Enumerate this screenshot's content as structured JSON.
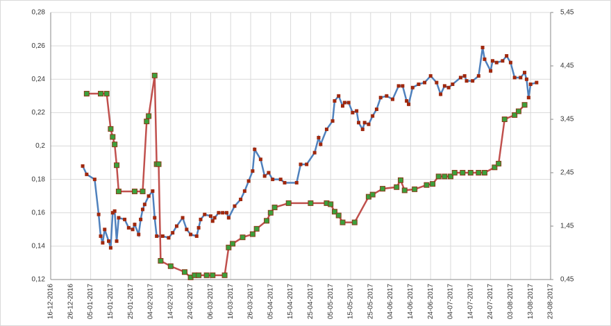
{
  "chart_data": {
    "type": "line",
    "xlim": [
      "16-12-2016",
      "23-08-2017"
    ],
    "xticks": [
      "16-12-2016",
      "26-12-2016",
      "05-01-2017",
      "15-01-2017",
      "25-01-2017",
      "04-02-2017",
      "14-02-2017",
      "24-02-2017",
      "06-03-2017",
      "16-03-2017",
      "26-03-2017",
      "05-04-2017",
      "15-04-2017",
      "25-04-2017",
      "05-05-2017",
      "15-05-2017",
      "25-05-2017",
      "04-06-2017",
      "14-06-2017",
      "24-06-2017",
      "04-07-2017",
      "14-07-2017",
      "24-07-2017",
      "03-08-2017",
      "13-08-2017",
      "23-08-2017"
    ],
    "ylim": [
      0.12,
      0.28
    ],
    "yticks": [
      {
        "value": 0.12,
        "label": "0,12"
      },
      {
        "value": 0.14,
        "label": "0,14"
      },
      {
        "value": 0.16,
        "label": "0,16"
      },
      {
        "value": 0.18,
        "label": "0,18"
      },
      {
        "value": 0.2,
        "label": "0,2"
      },
      {
        "value": 0.22,
        "label": "0,22"
      },
      {
        "value": 0.24,
        "label": "0,24"
      },
      {
        "value": 0.26,
        "label": "0,26"
      },
      {
        "value": 0.28,
        "label": "0,28"
      }
    ],
    "y2lim": [
      0.45,
      5.45
    ],
    "y2ticks": [
      {
        "value": 0.45,
        "label": "0,45"
      },
      {
        "value": 1.45,
        "label": "1,45"
      },
      {
        "value": 2.45,
        "label": "2,45"
      },
      {
        "value": 3.45,
        "label": "3,45"
      },
      {
        "value": 4.45,
        "label": "4,45"
      },
      {
        "value": 5.45,
        "label": "5,45"
      }
    ],
    "grid": true,
    "series": [
      {
        "color": "#4f81bd",
        "marker_color": "#a0280e",
        "x": [
          "01-01-2017",
          "03-01-2017",
          "07-01-2017",
          "09-01-2017",
          "10-01-2017",
          "11-01-2017",
          "12-01-2017",
          "14-01-2017",
          "15-01-2017",
          "16-01-2017",
          "17-01-2017",
          "18-01-2017",
          "19-01-2017",
          "22-01-2017",
          "24-01-2017",
          "26-01-2017",
          "27-01-2017",
          "29-01-2017",
          "30-01-2017",
          "31-01-2017",
          "01-02-2017",
          "03-02-2017",
          "05-02-2017",
          "06-02-2017",
          "07-02-2017",
          "10-02-2017",
          "13-02-2017",
          "15-02-2017",
          "17-02-2017",
          "20-02-2017",
          "22-02-2017",
          "24-02-2017",
          "27-02-2017",
          "28-02-2017",
          "01-03-2017",
          "03-03-2017",
          "06-03-2017",
          "07-03-2017",
          "08-03-2017",
          "10-03-2017",
          "12-03-2017",
          "14-03-2017",
          "15-03-2017",
          "18-03-2017",
          "21-03-2017",
          "23-03-2017",
          "25-03-2017",
          "27-03-2017",
          "28-03-2017",
          "31-03-2017",
          "02-04-2017",
          "04-04-2017",
          "06-04-2017",
          "10-04-2017",
          "12-04-2017",
          "18-04-2017",
          "20-04-2017",
          "23-04-2017",
          "27-04-2017",
          "29-04-2017",
          "30-04-2017",
          "03-05-2017",
          "06-05-2017",
          "07-05-2017",
          "09-05-2017",
          "11-05-2017",
          "12-05-2017",
          "14-05-2017",
          "16-05-2017",
          "18-05-2017",
          "19-05-2017",
          "21-05-2017",
          "22-05-2017",
          "24-05-2017",
          "26-05-2017",
          "28-05-2017",
          "30-05-2017",
          "02-06-2017",
          "05-06-2017",
          "08-06-2017",
          "10-06-2017",
          "12-06-2017",
          "13-06-2017",
          "15-06-2017",
          "18-06-2017",
          "21-06-2017",
          "24-06-2017",
          "27-06-2017",
          "29-06-2017",
          "01-07-2017",
          "03-07-2017",
          "05-07-2017",
          "09-07-2017",
          "11-07-2017",
          "12-07-2017",
          "15-07-2017",
          "18-07-2017",
          "20-07-2017",
          "21-07-2017",
          "24-07-2017",
          "25-07-2017",
          "27-07-2017",
          "30-07-2017",
          "01-08-2017",
          "03-08-2017",
          "05-08-2017",
          "08-08-2017",
          "10-08-2017",
          "11-08-2017",
          "12-08-2017",
          "13-08-2017",
          "16-08-2017"
        ],
        "values": [
          0.188,
          0.183,
          0.18,
          0.159,
          0.146,
          0.142,
          0.15,
          0.143,
          0.139,
          0.16,
          0.161,
          0.143,
          0.157,
          0.156,
          0.151,
          0.15,
          0.153,
          0.147,
          0.156,
          0.162,
          0.165,
          0.17,
          0.173,
          0.157,
          0.146,
          0.146,
          0.145,
          0.148,
          0.152,
          0.157,
          0.15,
          0.147,
          0.146,
          0.151,
          0.156,
          0.159,
          0.158,
          0.155,
          0.157,
          0.16,
          0.16,
          0.16,
          0.157,
          0.164,
          0.168,
          0.173,
          0.179,
          0.185,
          0.198,
          0.192,
          0.182,
          0.184,
          0.18,
          0.18,
          0.178,
          0.178,
          0.189,
          0.189,
          0.196,
          0.205,
          0.201,
          0.21,
          0.215,
          0.227,
          0.23,
          0.224,
          0.226,
          0.226,
          0.22,
          0.221,
          0.214,
          0.21,
          0.214,
          0.213,
          0.218,
          0.222,
          0.229,
          0.23,
          0.228,
          0.236,
          0.236,
          0.227,
          0.225,
          0.235,
          0.237,
          0.238,
          0.242,
          0.238,
          0.231,
          0.236,
          0.235,
          0.237,
          0.241,
          0.242,
          0.239,
          0.239,
          0.242,
          0.259,
          0.252,
          0.245,
          0.251,
          0.25,
          0.251,
          0.254,
          0.25,
          0.241,
          0.241,
          0.244,
          0.24,
          0.229,
          0.237,
          0.238
        ]
      },
      {
        "color": "#c0504d",
        "marker_color": "#3ca03c",
        "axis": "y2",
        "x": [
          "03-01-2017",
          "10-01-2017",
          "13-01-2017",
          "15-01-2017",
          "16-01-2017",
          "17-01-2017",
          "18-01-2017",
          "19-01-2017",
          "27-01-2017",
          "31-01-2017",
          "02-02-2017",
          "03-02-2017",
          "06-02-2017",
          "07-02-2017",
          "08-02-2017",
          "09-02-2017",
          "14-02-2017",
          "21-02-2017",
          "24-02-2017",
          "26-02-2017",
          "28-02-2017",
          "04-03-2017",
          "07-03-2017",
          "13-03-2017",
          "15-03-2017",
          "17-03-2017",
          "22-03-2017",
          "27-03-2017",
          "29-03-2017",
          "03-04-2017",
          "05-04-2017",
          "07-04-2017",
          "14-04-2017",
          "25-04-2017",
          "03-05-2017",
          "05-05-2017",
          "07-05-2017",
          "09-05-2017",
          "11-05-2017",
          "17-05-2017",
          "24-05-2017",
          "26-05-2017",
          "31-05-2017",
          "07-06-2017",
          "09-06-2017",
          "11-06-2017",
          "16-06-2017",
          "22-06-2017",
          "25-06-2017",
          "28-06-2017",
          "01-07-2017",
          "04-07-2017",
          "06-07-2017",
          "10-07-2017",
          "14-07-2017",
          "18-07-2017",
          "21-07-2017",
          "26-07-2017",
          "28-07-2017",
          "31-07-2017",
          "05-08-2017",
          "07-08-2017",
          "10-08-2017"
        ],
        "values": [
          3.93,
          3.93,
          3.93,
          3.27,
          3.12,
          2.98,
          2.59,
          2.1,
          2.1,
          2.1,
          3.41,
          3.51,
          4.27,
          2.61,
          2.61,
          0.8,
          0.7,
          0.59,
          0.49,
          0.53,
          0.53,
          0.53,
          0.53,
          0.53,
          1.05,
          1.12,
          1.24,
          1.3,
          1.4,
          1.55,
          1.7,
          1.8,
          1.88,
          1.88,
          1.88,
          1.86,
          1.72,
          1.65,
          1.52,
          1.52,
          2.0,
          2.04,
          2.15,
          2.18,
          2.31,
          2.12,
          2.14,
          2.22,
          2.24,
          2.38,
          2.38,
          2.38,
          2.45,
          2.45,
          2.45,
          2.45,
          2.45,
          2.55,
          2.62,
          3.45,
          3.53,
          3.6,
          3.72
        ]
      }
    ]
  }
}
